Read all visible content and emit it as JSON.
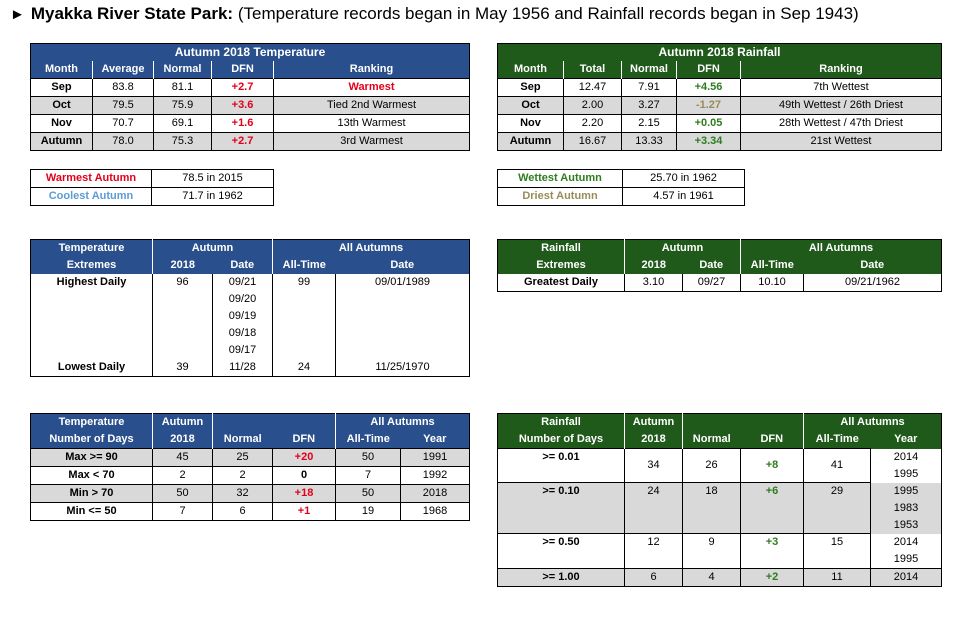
{
  "title": {
    "bold": "Myakka River State Park:",
    "rest": "(Temperature records began in May 1956 and Rainfall records began in Sep 1943)"
  },
  "temp_table": {
    "title": "Autumn 2018 Temperature",
    "headers": [
      "Month",
      "Average",
      "Normal",
      "DFN",
      "Ranking"
    ],
    "rows": [
      [
        "Sep",
        "83.8",
        "81.1",
        "+2.7",
        "Warmest"
      ],
      [
        "Oct",
        "79.5",
        "75.9",
        "+3.6",
        "Tied 2nd Warmest"
      ],
      [
        "Nov",
        "70.7",
        "69.1",
        "+1.6",
        "13th Warmest"
      ],
      [
        "Autumn",
        "78.0",
        "75.3",
        "+2.7",
        "3rd Warmest"
      ]
    ]
  },
  "rain_table": {
    "title": "Autumn 2018 Rainfall",
    "headers": [
      "Month",
      "Total",
      "Normal",
      "DFN",
      "Ranking"
    ],
    "rows": [
      [
        "Sep",
        "12.47",
        "7.91",
        "+4.56",
        "7th Wettest"
      ],
      [
        "Oct",
        "2.00",
        "3.27",
        "-1.27",
        "49th Wettest / 26th Driest"
      ],
      [
        "Nov",
        "2.20",
        "2.15",
        "+0.05",
        "28th Wettest / 47th Driest"
      ],
      [
        "Autumn",
        "16.67",
        "13.33",
        "+3.34",
        "21st Wettest"
      ]
    ]
  },
  "temp_records": [
    {
      "label": "Warmest Autumn",
      "value": "78.5 in 2015"
    },
    {
      "label": "Coolest Autumn",
      "value": "71.7 in 1962"
    }
  ],
  "rain_records": [
    {
      "label": "Wettest Autumn",
      "value": "25.70 in 1962"
    },
    {
      "label": "Driest Autumn",
      "value": "4.57 in 1961"
    }
  ],
  "temp_extremes": {
    "h1": "Temperature",
    "h2": "Extremes",
    "autumn": "Autumn",
    "all": "All Autumns",
    "c2018": "2018",
    "date": "Date",
    "alltime": "All-Time",
    "date2": "Date",
    "highest": {
      "label": "Highest Daily",
      "value": "96",
      "dates": [
        "09/21",
        "09/20",
        "09/19",
        "09/18",
        "09/17"
      ],
      "alltime": "99",
      "alldate": "09/01/1989"
    },
    "lowest": {
      "label": "Lowest Daily",
      "value": "39",
      "date": "11/28",
      "alltime": "24",
      "alldate": "11/25/1970"
    }
  },
  "rain_extremes": {
    "h1": "Rainfall",
    "h2": "Extremes",
    "autumn": "Autumn",
    "all": "All Autumns",
    "c2018": "2018",
    "date": "Date",
    "alltime": "All-Time",
    "date2": "Date",
    "row": {
      "label": "Greatest Daily",
      "value": "3.10",
      "date": "09/27",
      "alltime": "10.10",
      "alldate": "09/21/1962"
    }
  },
  "temp_days": {
    "h1": "Temperature",
    "h2": "Number of Days",
    "autumn": "Autumn",
    "c2018": "2018",
    "normal": "Normal",
    "dfn": "DFN",
    "all": "All Autumns",
    "alltime": "All-Time",
    "year": "Year",
    "rows": [
      [
        "Max >= 90",
        "45",
        "25",
        "+20",
        "50",
        "1991"
      ],
      [
        "Max < 70",
        "2",
        "2",
        "0",
        "7",
        "1992"
      ],
      [
        "Min > 70",
        "50",
        "32",
        "+18",
        "50",
        "2018"
      ],
      [
        "Min <= 50",
        "7",
        "6",
        "+1",
        "19",
        "1968"
      ]
    ]
  },
  "rain_days": {
    "h1": "Rainfall",
    "h2": "Number of Days",
    "autumn": "Autumn",
    "c2018": "2018",
    "normal": "Normal",
    "dfn": "DFN",
    "all": "All Autumns",
    "alltime": "All-Time",
    "year": "Year",
    "rows": [
      {
        "label": ">= 0.01",
        "v": "34",
        "n": "26",
        "d": "+8",
        "a": "41",
        "years": [
          "2014",
          "1995"
        ]
      },
      {
        "label": ">= 0.10",
        "v": "24",
        "n": "18",
        "d": "+6",
        "a": "29",
        "years": [
          "1995",
          "1983",
          "1953"
        ]
      },
      {
        "label": ">= 0.50",
        "v": "12",
        "n": "9",
        "d": "+3",
        "a": "15",
        "years": [
          "2014",
          "1995"
        ]
      },
      {
        "label": ">= 1.00",
        "v": "6",
        "n": "4",
        "d": "+2",
        "a": "11",
        "years": [
          "2014"
        ]
      }
    ]
  }
}
